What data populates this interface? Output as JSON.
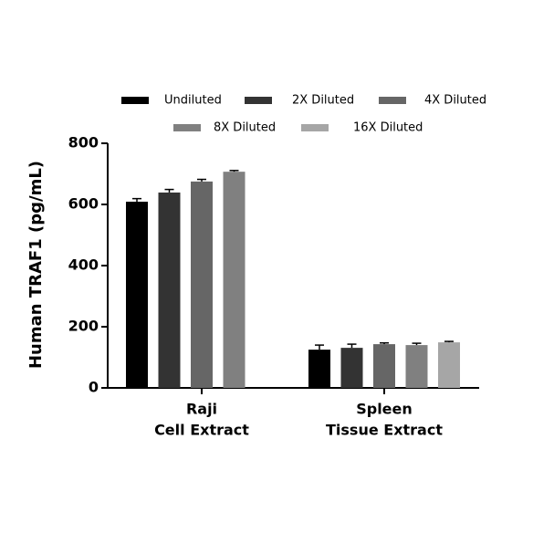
{
  "chart_data": {
    "type": "bar",
    "y_label": "Human TRAF1 (pg/mL)",
    "categories": [
      [
        "Raji",
        "Cell Extract"
      ],
      [
        "Spleen",
        "Tissue Extract"
      ]
    ],
    "series": [
      {
        "name": "Undiluted",
        "color": "#000000",
        "values": [
          609,
          125
        ],
        "errors": [
          10,
          15
        ]
      },
      {
        "name": "2X Diluted",
        "color": "#333333",
        "values": [
          639,
          131
        ],
        "errors": [
          10,
          12
        ]
      },
      {
        "name": "4X Diluted",
        "color": "#666666",
        "values": [
          675,
          143
        ],
        "errors": [
          7,
          4
        ]
      },
      {
        "name": "8X Diluted",
        "color": "#808080",
        "values": [
          707,
          140
        ],
        "errors": [
          4,
          6
        ]
      },
      {
        "name": "16X Diluted",
        "color": "#a6a6a6",
        "values": [
          null,
          149
        ],
        "errors": [
          null,
          3
        ]
      }
    ],
    "ylim": [
      0,
      800
    ],
    "yticks": [
      0,
      200,
      400,
      600,
      800
    ]
  }
}
